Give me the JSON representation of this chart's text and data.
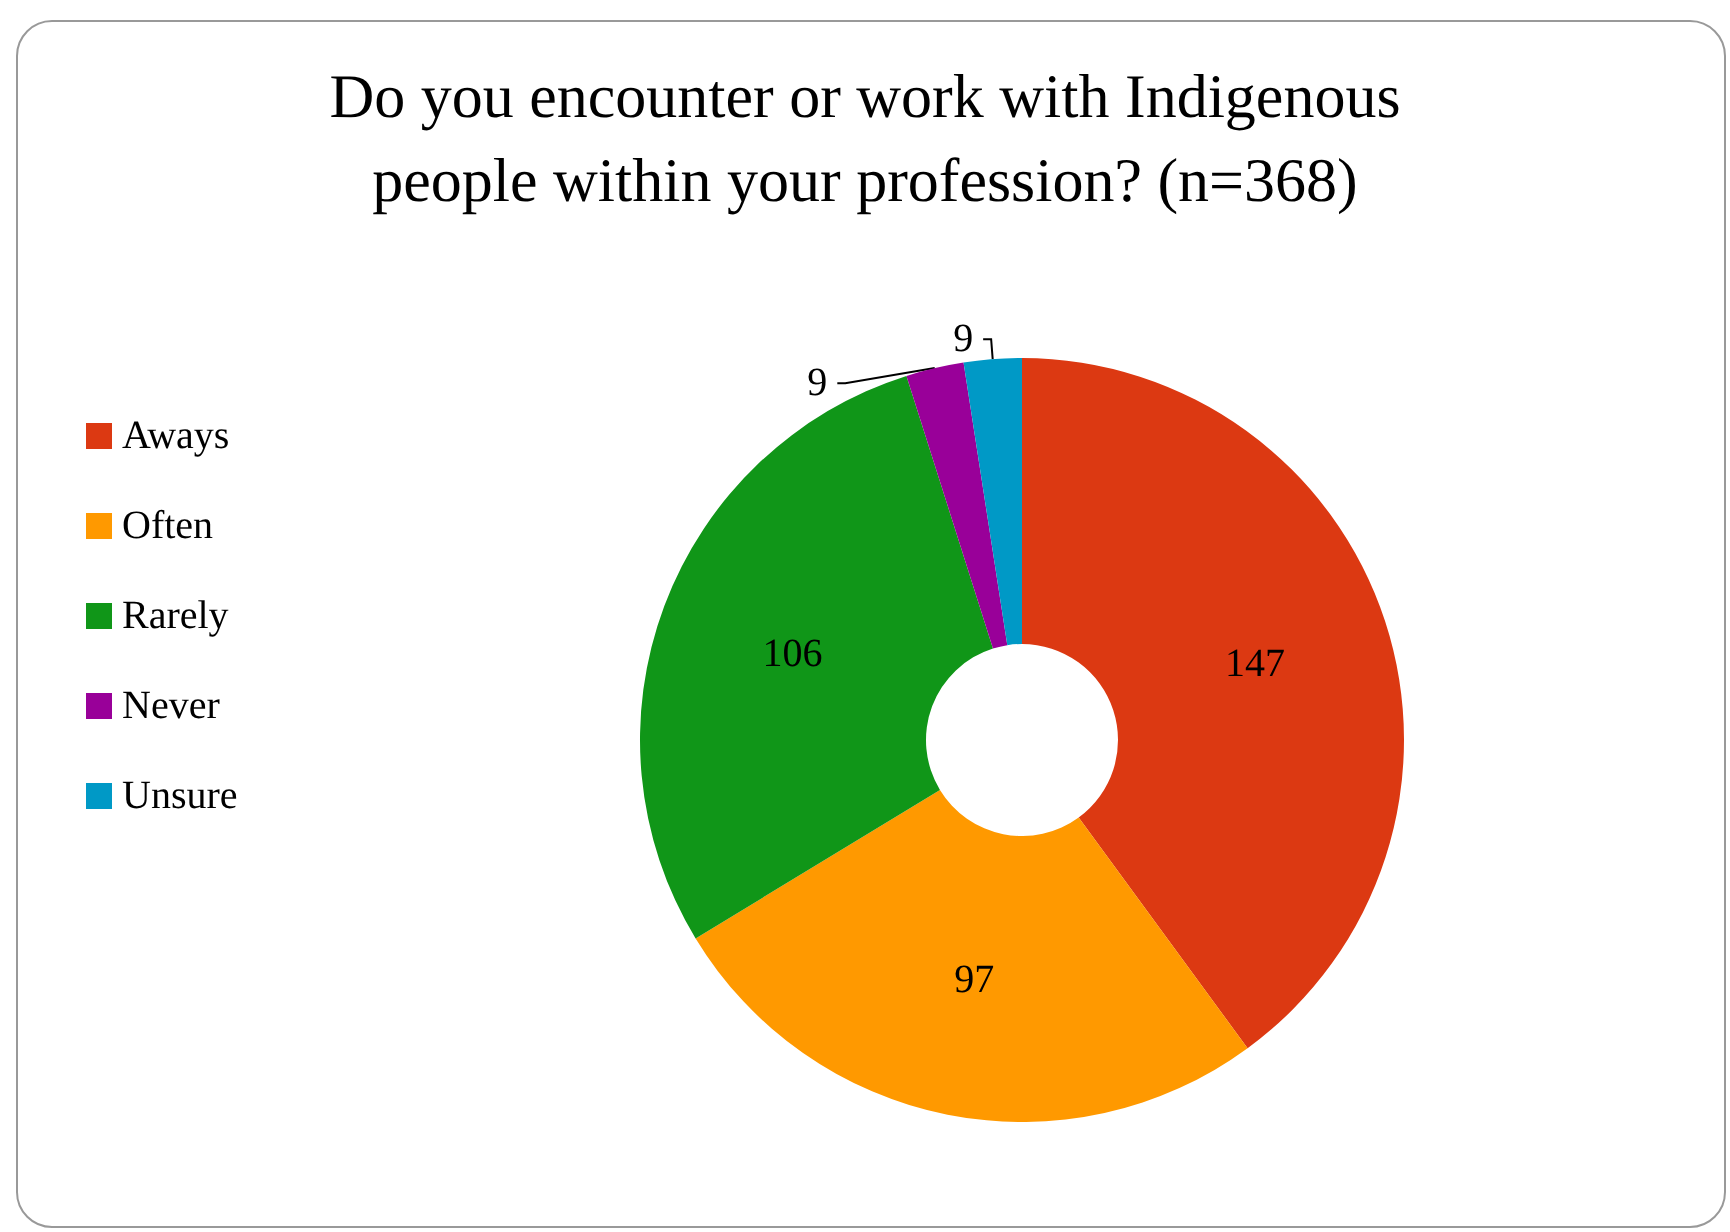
{
  "chart_data": {
    "type": "donut",
    "title": "Do you encounter or work with Indigenous\npeople within your profession? (n=368)",
    "categories": [
      "Aways",
      "Often",
      "Rarely",
      "Never",
      "Unsure"
    ],
    "values": [
      147,
      97,
      106,
      9,
      9
    ],
    "colors": [
      "#dc3912",
      "#ff9900",
      "#109618",
      "#990099",
      "#0099c6"
    ],
    "data_labels": true,
    "legend": "left"
  }
}
